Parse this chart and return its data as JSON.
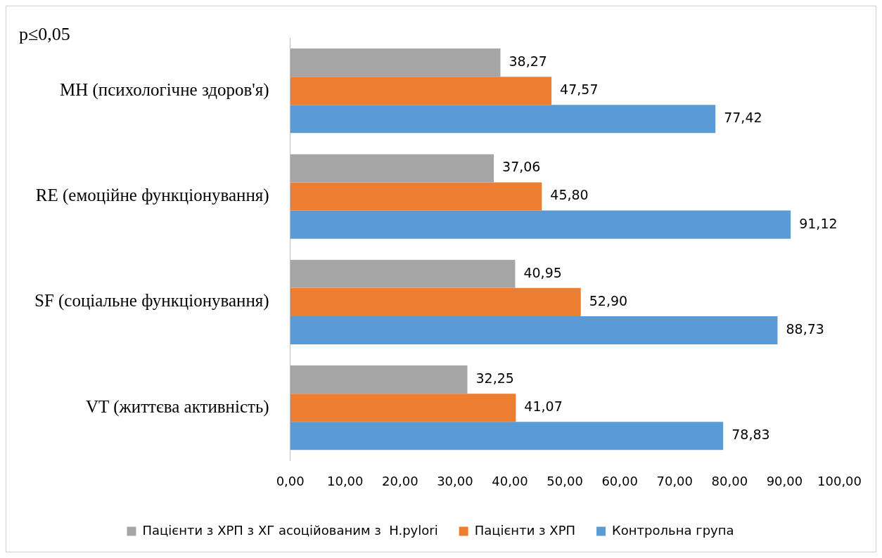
{
  "chart_data": {
    "type": "bar",
    "orientation": "horizontal",
    "annotations": [
      "p≤0,05"
    ],
    "categories": [
      "MH (психологічне здоров'я)",
      "RE (емоційне функціонування)",
      "SF (соціальне функціонування)",
      "VT (життєва активність)"
    ],
    "series": [
      {
        "name": "Пацієнти з ХРП з ХГ асоційованим з  H.pylori",
        "color": "#a5a5a5",
        "values": [
          38.27,
          37.06,
          40.95,
          32.25
        ],
        "value_labels": [
          "38,27",
          "37,06",
          "40,95",
          "32,25"
        ]
      },
      {
        "name": "Пацієнти з ХРП",
        "color": "#ed7d31",
        "values": [
          47.57,
          45.8,
          52.9,
          41.07
        ],
        "value_labels": [
          "47,57",
          "45,80",
          "52,90",
          "41,07"
        ]
      },
      {
        "name": "Контрольна група",
        "color": "#5b9bd5",
        "values": [
          77.42,
          91.12,
          88.73,
          78.83
        ],
        "value_labels": [
          "77,42",
          "91,12",
          "88,73",
          "78,83"
        ]
      }
    ],
    "xlim": [
      0,
      100
    ],
    "xticks": [
      {
        "value": 0,
        "label": "0,00"
      },
      {
        "value": 10,
        "label": "10,00"
      },
      {
        "value": 20,
        "label": "20,00"
      },
      {
        "value": 30,
        "label": "30,00"
      },
      {
        "value": 40,
        "label": "40,00"
      },
      {
        "value": 50,
        "label": "50,00"
      },
      {
        "value": 60,
        "label": "60,00"
      },
      {
        "value": 70,
        "label": "70,00"
      },
      {
        "value": 80,
        "label": "80,00"
      },
      {
        "value": 90,
        "label": "90,00"
      },
      {
        "value": 100,
        "label": "100,00"
      }
    ],
    "legend": "bottom"
  }
}
